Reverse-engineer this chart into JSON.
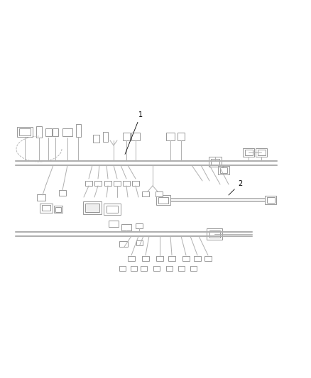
{
  "bg_color": "#ffffff",
  "line_color": "#b0b0b0",
  "dark_line_color": "#888888",
  "fig_width": 4.38,
  "fig_height": 5.33,
  "dpi": 100
}
